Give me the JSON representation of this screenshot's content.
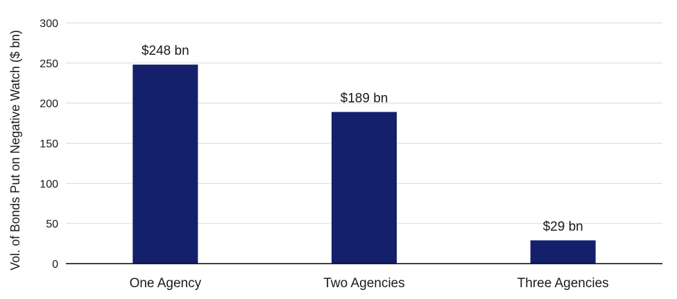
{
  "chart_data": {
    "type": "bar",
    "title": "",
    "xlabel": "",
    "ylabel": "Vol. of Bonds Put on Negative Watch ($ bn)",
    "categories": [
      "One Agency",
      "Two Agencies",
      "Three Agencies"
    ],
    "values": [
      248,
      189,
      29
    ],
    "data_labels": [
      "$248 bn",
      "$189 bn",
      "$29 bn"
    ],
    "ylim": [
      0,
      300
    ],
    "yticks": [
      0,
      50,
      100,
      150,
      200,
      250,
      300
    ],
    "grid": true,
    "legend": "none",
    "bar_color": "#14206b"
  }
}
